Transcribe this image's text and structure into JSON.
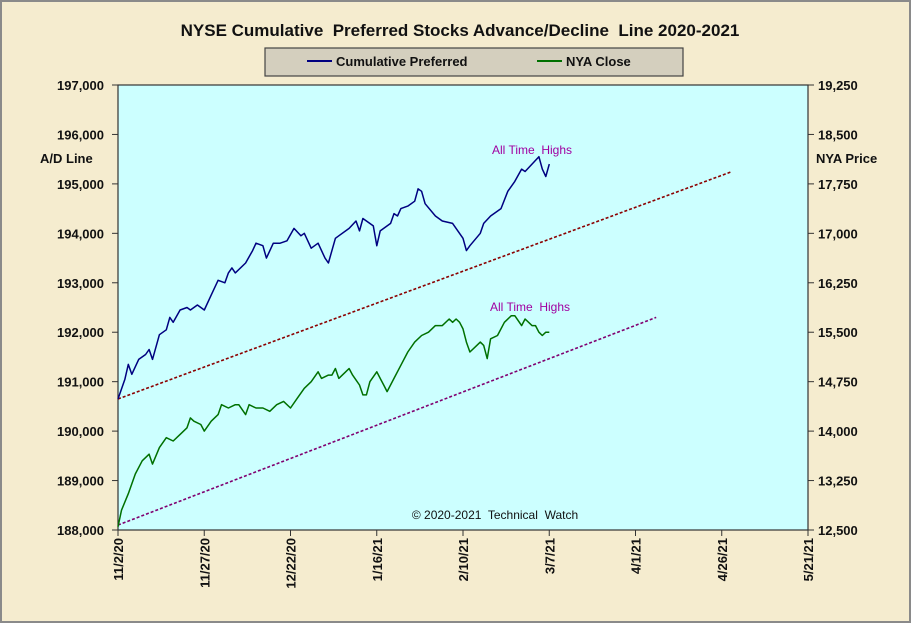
{
  "chart_data": {
    "type": "line",
    "title": "NYSE Cumulative  Preferred Stocks Advance/Decline  Line 2020-2021",
    "ylabel_left": "A/D Line",
    "ylabel_right": "NYA Price",
    "ylim_left": [
      188000,
      197000
    ],
    "ylim_right": [
      12500,
      19250
    ],
    "left_ticks": [
      "188,000",
      "189,000",
      "190,000",
      "191,000",
      "192,000",
      "193,000",
      "194,000",
      "195,000",
      "196,000",
      "197,000"
    ],
    "right_ticks": [
      "12,500",
      "13,250",
      "14,000",
      "14,750",
      "15,500",
      "16,250",
      "17,000",
      "17,750",
      "18,500",
      "19,250"
    ],
    "x_ticks": [
      "11/2/20",
      "11/27/20",
      "12/22/20",
      "1/16/21",
      "2/10/21",
      "3/7/21",
      "4/1/21",
      "4/26/21",
      "5/21/21"
    ],
    "x_tick_days": [
      0,
      25,
      50,
      75,
      100,
      125,
      150,
      175,
      200
    ],
    "xlim_days": [
      0,
      200
    ],
    "legend": {
      "position": "top-center",
      "entries": [
        "Cumulative Preferred",
        "NYA Close"
      ]
    },
    "series": [
      {
        "name": "Cumulative Preferred",
        "axis": "left",
        "color": "#000080",
        "points": [
          [
            0,
            190650
          ],
          [
            2,
            191050
          ],
          [
            3,
            191350
          ],
          [
            4,
            191150
          ],
          [
            6,
            191450
          ],
          [
            8,
            191550
          ],
          [
            9,
            191650
          ],
          [
            10,
            191450
          ],
          [
            12,
            191950
          ],
          [
            14,
            192050
          ],
          [
            15,
            192300
          ],
          [
            16,
            192200
          ],
          [
            18,
            192450
          ],
          [
            20,
            192500
          ],
          [
            21,
            192450
          ],
          [
            23,
            192550
          ],
          [
            25,
            192450
          ],
          [
            27,
            192750
          ],
          [
            29,
            193050
          ],
          [
            31,
            193000
          ],
          [
            32,
            193200
          ],
          [
            33,
            193300
          ],
          [
            34,
            193200
          ],
          [
            37,
            193400
          ],
          [
            39,
            193650
          ],
          [
            40,
            193800
          ],
          [
            42,
            193750
          ],
          [
            43,
            193500
          ],
          [
            45,
            193800
          ],
          [
            47,
            193800
          ],
          [
            49,
            193850
          ],
          [
            51,
            194100
          ],
          [
            53,
            193950
          ],
          [
            54,
            194000
          ],
          [
            56,
            193700
          ],
          [
            58,
            193800
          ],
          [
            60,
            193500
          ],
          [
            61,
            193400
          ],
          [
            63,
            193900
          ],
          [
            64,
            193950
          ],
          [
            67,
            194100
          ],
          [
            69,
            194250
          ],
          [
            70,
            194050
          ],
          [
            71,
            194300
          ],
          [
            74,
            194150
          ],
          [
            75,
            193750
          ],
          [
            76,
            194050
          ],
          [
            79,
            194200
          ],
          [
            80,
            194400
          ],
          [
            81,
            194350
          ],
          [
            82,
            194500
          ],
          [
            84,
            194550
          ],
          [
            86,
            194650
          ],
          [
            87,
            194900
          ],
          [
            88,
            194850
          ],
          [
            89,
            194600
          ],
          [
            92,
            194350
          ],
          [
            94,
            194250
          ],
          [
            97,
            194200
          ],
          [
            98,
            194100
          ],
          [
            100,
            193900
          ],
          [
            101,
            193650
          ],
          [
            102,
            193750
          ],
          [
            105,
            194000
          ],
          [
            106,
            194200
          ],
          [
            108,
            194350
          ],
          [
            111,
            194500
          ],
          [
            113,
            194850
          ],
          [
            115,
            195050
          ],
          [
            117,
            195300
          ],
          [
            118,
            195250
          ],
          [
            120,
            195400
          ],
          [
            122,
            195550
          ],
          [
            123,
            195300
          ],
          [
            124,
            195150
          ],
          [
            125,
            195400
          ]
        ]
      },
      {
        "name": "NYA Close",
        "axis": "right",
        "color": "#007000",
        "points": [
          [
            0,
            12550
          ],
          [
            1,
            12800
          ],
          [
            3,
            13050
          ],
          [
            5,
            13350
          ],
          [
            7,
            13550
          ],
          [
            9,
            13650
          ],
          [
            10,
            13500
          ],
          [
            12,
            13750
          ],
          [
            14,
            13900
          ],
          [
            16,
            13850
          ],
          [
            18,
            13950
          ],
          [
            20,
            14050
          ],
          [
            21,
            14200
          ],
          [
            22,
            14150
          ],
          [
            24,
            14100
          ],
          [
            25,
            14000
          ],
          [
            27,
            14150
          ],
          [
            29,
            14250
          ],
          [
            30,
            14400
          ],
          [
            32,
            14350
          ],
          [
            34,
            14400
          ],
          [
            35,
            14400
          ],
          [
            37,
            14250
          ],
          [
            38,
            14400
          ],
          [
            40,
            14350
          ],
          [
            42,
            14350
          ],
          [
            44,
            14300
          ],
          [
            46,
            14400
          ],
          [
            48,
            14450
          ],
          [
            50,
            14350
          ],
          [
            52,
            14500
          ],
          [
            54,
            14650
          ],
          [
            56,
            14750
          ],
          [
            58,
            14900
          ],
          [
            59,
            14800
          ],
          [
            61,
            14850
          ],
          [
            62,
            14850
          ],
          [
            63,
            14950
          ],
          [
            64,
            14800
          ],
          [
            66,
            14900
          ],
          [
            67,
            14950
          ],
          [
            68,
            14850
          ],
          [
            70,
            14700
          ],
          [
            71,
            14550
          ],
          [
            72,
            14550
          ],
          [
            73,
            14750
          ],
          [
            75,
            14900
          ],
          [
            76,
            14800
          ],
          [
            77,
            14700
          ],
          [
            78,
            14600
          ],
          [
            80,
            14800
          ],
          [
            82,
            15000
          ],
          [
            84,
            15200
          ],
          [
            86,
            15350
          ],
          [
            88,
            15450
          ],
          [
            90,
            15500
          ],
          [
            92,
            15600
          ],
          [
            94,
            15600
          ],
          [
            96,
            15700
          ],
          [
            97,
            15650
          ],
          [
            98,
            15700
          ],
          [
            99,
            15650
          ],
          [
            100,
            15550
          ],
          [
            101,
            15350
          ],
          [
            102,
            15200
          ],
          [
            104,
            15300
          ],
          [
            105,
            15350
          ],
          [
            106,
            15300
          ],
          [
            107,
            15100
          ],
          [
            108,
            15400
          ],
          [
            110,
            15450
          ],
          [
            112,
            15650
          ],
          [
            114,
            15750
          ],
          [
            115,
            15750
          ],
          [
            117,
            15600
          ],
          [
            118,
            15700
          ],
          [
            120,
            15600
          ],
          [
            121,
            15600
          ],
          [
            122,
            15500
          ],
          [
            123,
            15450
          ],
          [
            124,
            15500
          ],
          [
            125,
            15500
          ]
        ]
      }
    ],
    "trendlines": [
      {
        "axis": "left",
        "color": "#8b0000",
        "from": [
          0,
          190650
        ],
        "to": [
          178,
          195250
        ]
      },
      {
        "axis": "left",
        "color": "#800070",
        "from": [
          0,
          188100
        ],
        "to": [
          156,
          192300
        ]
      }
    ],
    "annotations": [
      {
        "text": "All Time  Highs",
        "series": "Cumulative Preferred",
        "color": "#a000a0"
      },
      {
        "text": "All Time  Highs",
        "series": "NYA Close",
        "color": "#a000a0"
      },
      {
        "text": "© 2020-2021  Technical  Watch",
        "color": "#000000"
      }
    ],
    "grid": false,
    "plot_background": "#ccffff",
    "page_background": "#f5eccf"
  }
}
